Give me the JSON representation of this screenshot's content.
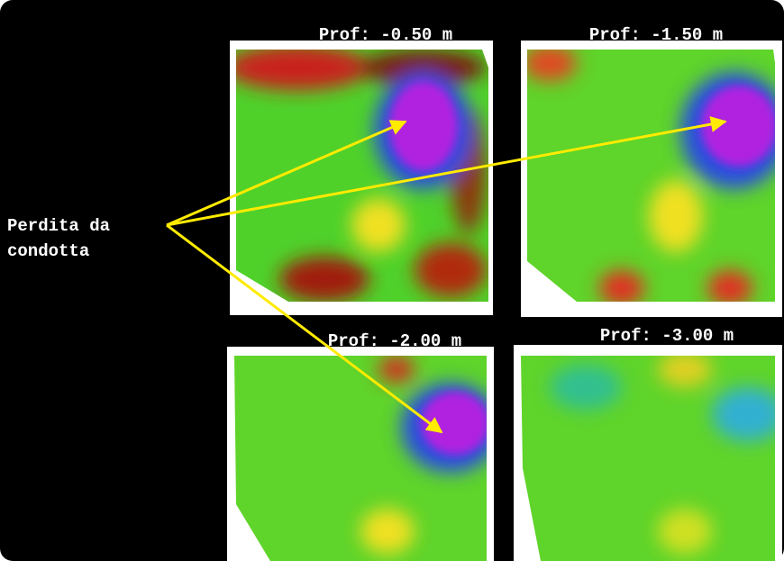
{
  "panels": [
    {
      "title": "Prof: -0.50 m"
    },
    {
      "title": "Prof: -1.50 m"
    },
    {
      "title": "Prof: -2.00 m"
    },
    {
      "title": "Prof: -3.00 m"
    }
  ],
  "annotation": {
    "lines": [
      "Perdita da",
      "condotta"
    ]
  }
}
